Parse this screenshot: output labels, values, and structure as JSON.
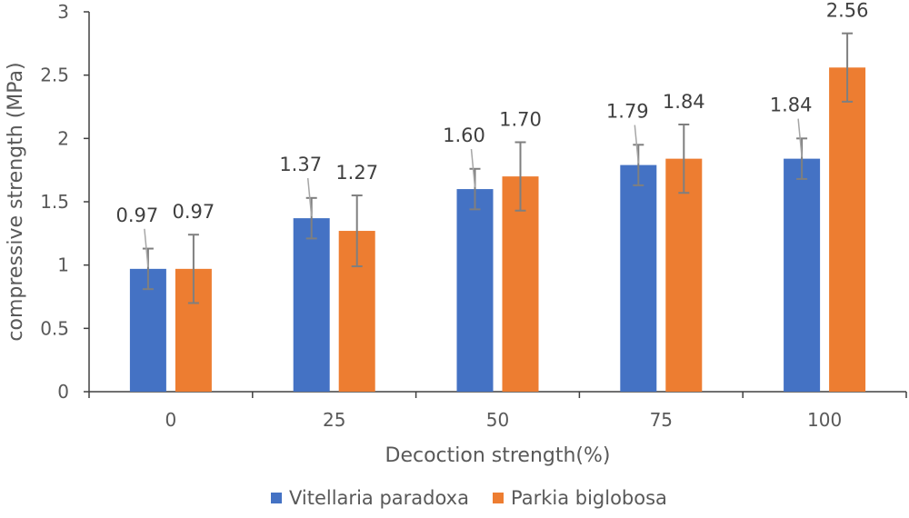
{
  "chart_data": {
    "type": "bar",
    "xlabel": "Decoction strength(%)",
    "ylabel": "compressive strength (MPa)",
    "ylim": [
      0,
      3
    ],
    "yticks": [
      "0",
      "0.5",
      "1",
      "1.5",
      "2",
      "2.5",
      "3"
    ],
    "categories": [
      "0",
      "25",
      "50",
      "75",
      "100"
    ],
    "series": [
      {
        "name": "Vitellaria paradoxa",
        "color": "#4472C4",
        "values": [
          0.97,
          1.37,
          1.6,
          1.79,
          1.84
        ],
        "labels": [
          "0.97",
          "1.37",
          "1.60",
          "1.79",
          "1.84"
        ],
        "error": [
          0.16,
          0.16,
          0.16,
          0.16,
          0.16
        ]
      },
      {
        "name": "Parkia biglobosa",
        "color": "#ED7D31",
        "values": [
          0.97,
          1.27,
          1.7,
          1.84,
          2.56
        ],
        "labels": [
          "0.97",
          "1.27",
          "1.70",
          "1.84",
          "2.56"
        ],
        "error": [
          0.27,
          0.28,
          0.27,
          0.27,
          0.27
        ]
      }
    ],
    "legend_position": "bottom"
  }
}
